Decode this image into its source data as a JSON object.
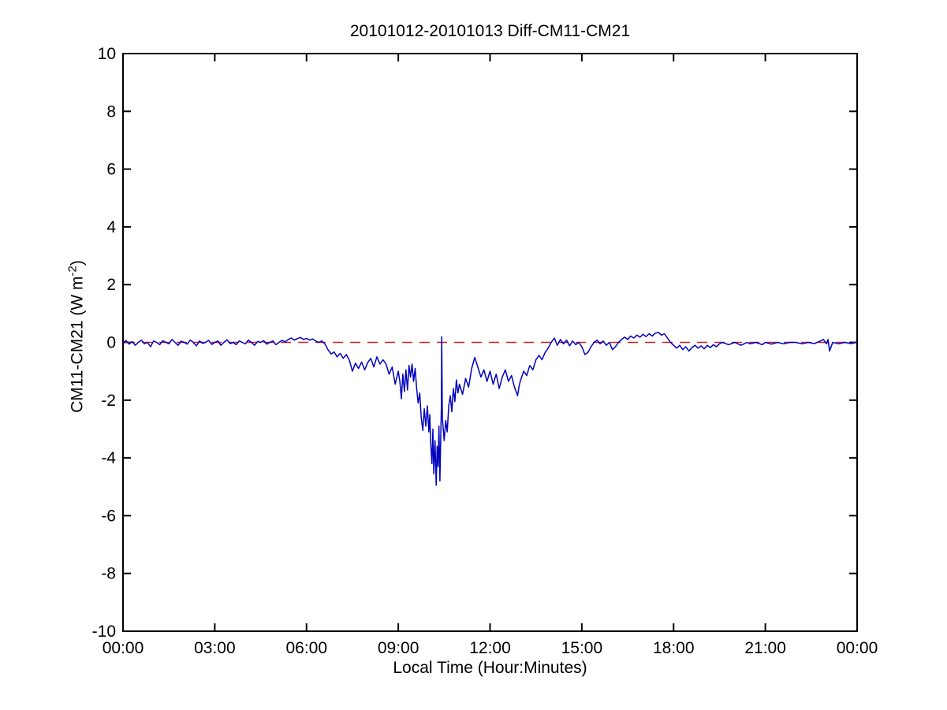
{
  "figure": {
    "title": "20101012-20101013 Diff-CM11-CM21",
    "xlabel": "Local Time (Hour:Minutes)",
    "ylabel_main": "CM11-CM21 (W m",
    "ylabel_sup": "-2",
    "ylabel_close": ")"
  },
  "chart_data": {
    "type": "line",
    "title": "20101012-20101013 Diff-CM11-CM21",
    "xlabel": "Local Time (Hour:Minutes)",
    "ylabel": "CM11-CM21 (W m^-2)",
    "xlim_hours": [
      0,
      24
    ],
    "ylim": [
      -10,
      10
    ],
    "grid": false,
    "legend": "none",
    "x_tick_hours": [
      0,
      3,
      6,
      9,
      12,
      15,
      18,
      21,
      24
    ],
    "x_tick_labels": [
      "00:00",
      "03:00",
      "06:00",
      "09:00",
      "12:00",
      "15:00",
      "18:00",
      "21:00",
      "00:00"
    ],
    "y_tick_values": [
      -10,
      -8,
      -6,
      -4,
      -2,
      0,
      2,
      4,
      6,
      8,
      10
    ],
    "y_tick_labels": [
      "-10",
      "-8",
      "-6",
      "-4",
      "-2",
      "0",
      "2",
      "4",
      "6",
      "8",
      "10"
    ],
    "colors": {
      "axis": "#000000",
      "series": "#0000BF",
      "zero_line": "#CC2222",
      "background": "#FFFFFF"
    },
    "zero_line": {
      "y": 0,
      "style": "dashed",
      "color": "#CC2222"
    },
    "series": [
      {
        "name": "CM11-CM21 difference",
        "color": "#0000BF",
        "points": [
          [
            0,
            0
          ],
          [
            0.1,
            0.06
          ],
          [
            0.2,
            -0.06
          ],
          [
            0.3,
            0.03
          ],
          [
            0.4,
            -0.1
          ],
          [
            0.5,
            0
          ],
          [
            0.6,
            0.08
          ],
          [
            0.7,
            -0.05
          ],
          [
            0.8,
            0
          ],
          [
            0.9,
            -0.15
          ],
          [
            1,
            0.05
          ],
          [
            1.1,
            0
          ],
          [
            1.2,
            -0.08
          ],
          [
            1.3,
            0.06
          ],
          [
            1.4,
            0
          ],
          [
            1.5,
            -0.05
          ],
          [
            1.6,
            0.1
          ],
          [
            1.7,
            0
          ],
          [
            1.8,
            -0.1
          ],
          [
            1.9,
            0.04
          ],
          [
            2,
            0
          ],
          [
            2.1,
            -0.06
          ],
          [
            2.2,
            0.08
          ],
          [
            2.3,
            0
          ],
          [
            2.4,
            -0.12
          ],
          [
            2.5,
            0.05
          ],
          [
            2.6,
            -0.03
          ],
          [
            2.7,
            0
          ],
          [
            2.8,
            0.07
          ],
          [
            2.9,
            -0.07
          ],
          [
            3,
            0
          ],
          [
            3.1,
            0.05
          ],
          [
            3.2,
            -0.1
          ],
          [
            3.3,
            0
          ],
          [
            3.4,
            0.09
          ],
          [
            3.5,
            -0.04
          ],
          [
            3.6,
            0
          ],
          [
            3.7,
            -0.08
          ],
          [
            3.8,
            0.05
          ],
          [
            3.9,
            0
          ],
          [
            4,
            -0.05
          ],
          [
            4.1,
            0.08
          ],
          [
            4.2,
            0
          ],
          [
            4.3,
            -0.1
          ],
          [
            4.4,
            0.03
          ],
          [
            4.5,
            0
          ],
          [
            4.6,
            0.06
          ],
          [
            4.7,
            -0.06
          ],
          [
            4.8,
            0
          ],
          [
            4.9,
            0.05
          ],
          [
            5,
            -0.08
          ],
          [
            5.1,
            0
          ],
          [
            5.2,
            0.07
          ],
          [
            5.3,
            0.02
          ],
          [
            5.4,
            0.1
          ],
          [
            5.5,
            0.15
          ],
          [
            5.6,
            0.08
          ],
          [
            5.7,
            0.13
          ],
          [
            5.8,
            0.17
          ],
          [
            5.9,
            0.1
          ],
          [
            6,
            0.14
          ],
          [
            6.1,
            0.08
          ],
          [
            6.2,
            0.12
          ],
          [
            6.3,
            0.05
          ],
          [
            6.4,
            0
          ],
          [
            6.5,
            0.05
          ],
          [
            6.6,
            -0.05
          ],
          [
            6.7,
            -0.25
          ],
          [
            6.8,
            -0.4
          ],
          [
            6.9,
            -0.33
          ],
          [
            7,
            -0.5
          ],
          [
            7.1,
            -0.38
          ],
          [
            7.2,
            -0.55
          ],
          [
            7.3,
            -0.42
          ],
          [
            7.4,
            -0.62
          ],
          [
            7.5,
            -1
          ],
          [
            7.6,
            -0.72
          ],
          [
            7.7,
            -0.9
          ],
          [
            7.8,
            -0.68
          ],
          [
            7.9,
            -0.95
          ],
          [
            8,
            -0.7
          ],
          [
            8.1,
            -0.55
          ],
          [
            8.2,
            -0.85
          ],
          [
            8.3,
            -0.5
          ],
          [
            8.4,
            -0.75
          ],
          [
            8.5,
            -0.6
          ],
          [
            8.6,
            -0.75
          ],
          [
            8.7,
            -1.1
          ],
          [
            8.8,
            -0.85
          ],
          [
            8.9,
            -1.45
          ],
          [
            9,
            -1
          ],
          [
            9.05,
            -1.35
          ],
          [
            9.1,
            -1.95
          ],
          [
            9.15,
            -1.1
          ],
          [
            9.2,
            -1.7
          ],
          [
            9.25,
            -0.95
          ],
          [
            9.3,
            -1.65
          ],
          [
            9.35,
            -0.8
          ],
          [
            9.4,
            -1.2
          ],
          [
            9.45,
            -0.75
          ],
          [
            9.5,
            -1.35
          ],
          [
            9.55,
            -0.9
          ],
          [
            9.6,
            -1.6
          ],
          [
            9.65,
            -2.1
          ],
          [
            9.7,
            -1.75
          ],
          [
            9.75,
            -2.6
          ],
          [
            9.8,
            -3.05
          ],
          [
            9.85,
            -2.3
          ],
          [
            9.9,
            -2.9
          ],
          [
            9.95,
            -2.2
          ],
          [
            10,
            -3.1
          ],
          [
            10.03,
            -2.5
          ],
          [
            10.06,
            -3.45
          ],
          [
            10.1,
            -4.2
          ],
          [
            10.13,
            -3
          ],
          [
            10.16,
            -4.55
          ],
          [
            10.2,
            -3.4
          ],
          [
            10.24,
            -4.95
          ],
          [
            10.27,
            -3.6
          ],
          [
            10.3,
            -4.3
          ],
          [
            10.33,
            -2.9
          ],
          [
            10.36,
            -4.8
          ],
          [
            10.39,
            -3.2
          ],
          [
            10.41,
            -2.2
          ],
          [
            10.42,
            0.2
          ],
          [
            10.44,
            -2.6
          ],
          [
            10.5,
            -3.4
          ],
          [
            10.55,
            -2.7
          ],
          [
            10.6,
            -3.1
          ],
          [
            10.65,
            -2.2
          ],
          [
            10.7,
            -1.85
          ],
          [
            10.75,
            -2.4
          ],
          [
            10.8,
            -1.6
          ],
          [
            10.85,
            -2.05
          ],
          [
            10.9,
            -1.3
          ],
          [
            10.95,
            -1.75
          ],
          [
            11,
            -1.45
          ],
          [
            11.1,
            -1.8
          ],
          [
            11.2,
            -1.25
          ],
          [
            11.3,
            -1.55
          ],
          [
            11.4,
            -0.9
          ],
          [
            11.5,
            -0.52
          ],
          [
            11.6,
            -0.85
          ],
          [
            11.7,
            -1.2
          ],
          [
            11.8,
            -0.95
          ],
          [
            11.9,
            -1.35
          ],
          [
            12,
            -1
          ],
          [
            12.1,
            -1.45
          ],
          [
            12.2,
            -1.1
          ],
          [
            12.3,
            -1.6
          ],
          [
            12.4,
            -1.2
          ],
          [
            12.5,
            -0.95
          ],
          [
            12.6,
            -1.35
          ],
          [
            12.7,
            -1.15
          ],
          [
            12.8,
            -1.55
          ],
          [
            12.9,
            -1.85
          ],
          [
            12.95,
            -1.5
          ],
          [
            13,
            -1.3
          ],
          [
            13.1,
            -1
          ],
          [
            13.2,
            -1.15
          ],
          [
            13.3,
            -0.8
          ],
          [
            13.4,
            -0.95
          ],
          [
            13.5,
            -0.6
          ],
          [
            13.6,
            -0.45
          ],
          [
            13.7,
            -0.6
          ],
          [
            13.8,
            -0.35
          ],
          [
            13.9,
            -0.2
          ],
          [
            14,
            0
          ],
          [
            14.1,
            0.15
          ],
          [
            14.2,
            -0.1
          ],
          [
            14.3,
            0.1
          ],
          [
            14.4,
            -0.05
          ],
          [
            14.5,
            0.08
          ],
          [
            14.6,
            -0.12
          ],
          [
            14.7,
            0.05
          ],
          [
            14.8,
            -0.08
          ],
          [
            14.9,
            0
          ],
          [
            15,
            -0.15
          ],
          [
            15.1,
            -0.42
          ],
          [
            15.2,
            -0.35
          ],
          [
            15.3,
            -0.15
          ],
          [
            15.4,
            0
          ],
          [
            15.5,
            0.08
          ],
          [
            15.6,
            -0.05
          ],
          [
            15.7,
            0.05
          ],
          [
            15.8,
            -0.1
          ],
          [
            15.9,
            0
          ],
          [
            16,
            -0.25
          ],
          [
            16.1,
            -0.15
          ],
          [
            16.2,
            0
          ],
          [
            16.3,
            0.1
          ],
          [
            16.4,
            0.18
          ],
          [
            16.5,
            0.1
          ],
          [
            16.6,
            0.22
          ],
          [
            16.7,
            0.15
          ],
          [
            16.8,
            0.25
          ],
          [
            16.9,
            0.18
          ],
          [
            17,
            0.28
          ],
          [
            17.1,
            0.2
          ],
          [
            17.2,
            0.3
          ],
          [
            17.3,
            0.22
          ],
          [
            17.4,
            0.32
          ],
          [
            17.5,
            0.35
          ],
          [
            17.6,
            0.25
          ],
          [
            17.7,
            0.3
          ],
          [
            17.8,
            0.15
          ],
          [
            17.9,
            0
          ],
          [
            18,
            -0.1
          ],
          [
            18.1,
            -0.2
          ],
          [
            18.2,
            -0.1
          ],
          [
            18.3,
            -0.25
          ],
          [
            18.4,
            -0.15
          ],
          [
            18.5,
            -0.3
          ],
          [
            18.6,
            -0.18
          ],
          [
            18.7,
            -0.1
          ],
          [
            18.8,
            -0.2
          ],
          [
            18.9,
            -0.12
          ],
          [
            19,
            -0.22
          ],
          [
            19.1,
            -0.1
          ],
          [
            19.2,
            -0.18
          ],
          [
            19.3,
            -0.08
          ],
          [
            19.4,
            -0.15
          ],
          [
            19.5,
            -0.05
          ],
          [
            19.6,
            0
          ],
          [
            19.8,
            -0.08
          ],
          [
            20,
            0
          ],
          [
            20.2,
            -0.1
          ],
          [
            20.4,
            0
          ],
          [
            20.5,
            -0.05
          ],
          [
            20.7,
            0
          ],
          [
            20.9,
            -0.08
          ],
          [
            21,
            0
          ],
          [
            21.2,
            -0.06
          ],
          [
            21.4,
            0
          ],
          [
            21.6,
            -0.05
          ],
          [
            21.8,
            0
          ],
          [
            22,
            0
          ],
          [
            22.2,
            -0.05
          ],
          [
            22.4,
            0
          ],
          [
            22.6,
            -0.04
          ],
          [
            22.8,
            0.05
          ],
          [
            22.9,
            0.1
          ],
          [
            23,
            -0.05
          ],
          [
            23.05,
            0.1
          ],
          [
            23.1,
            -0.3
          ],
          [
            23.2,
            0
          ],
          [
            23.4,
            -0.05
          ],
          [
            23.6,
            0
          ],
          [
            23.8,
            -0.04
          ],
          [
            24,
            0
          ]
        ]
      }
    ]
  }
}
